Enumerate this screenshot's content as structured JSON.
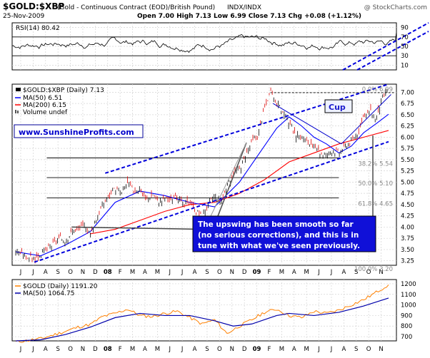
{
  "header": {
    "symbol": "$GOLD:$XBP",
    "description": "(Gold - Continuous Contract (EOD)/British Pound)",
    "exchange": "INDX/INDX",
    "date": "25-Nov-2009",
    "ohlc": "Open 7.00  High 7.13  Low 6.99  Close 7.13  Chg +0.08 (+1.12%)",
    "credit": "@ StockCharts.com",
    "credit_symbol": "▲"
  },
  "chart_data": [
    {
      "type": "line",
      "name": "rsi_panel",
      "legend": [
        "RSI(14) 80.42"
      ],
      "y_ticks": [
        "90",
        "70",
        "50",
        "30",
        "10"
      ],
      "ylim": [
        0,
        100
      ],
      "overbought": 70,
      "oversold": 30,
      "last_value": 80.42
    },
    {
      "type": "line",
      "name": "ratio_panel",
      "legend": [
        {
          "label": "$GOLD:$XBP (Daily) 7.13",
          "color": "#000000"
        },
        {
          "label": "MA(50) 6.51",
          "color": "#0000ff"
        },
        {
          "label": "MA(200) 6.15",
          "color": "#ff0000"
        },
        {
          "label": "Volume undef",
          "color": "#000000"
        }
      ],
      "x_labels": [
        "J",
        "J",
        "A",
        "S",
        "O",
        "N",
        "D",
        "08",
        "F",
        "M",
        "A",
        "M",
        "J",
        "J",
        "A",
        "S",
        "O",
        "N",
        "D",
        "09",
        "F",
        "M",
        "A",
        "M",
        "J",
        "J",
        "A",
        "S",
        "O",
        "N"
      ],
      "y_ticks": [
        "7.00",
        "6.75",
        "6.50",
        "6.25",
        "6.00",
        "5.75",
        "5.50",
        "5.25",
        "5.00",
        "4.75",
        "4.50",
        "4.25",
        "4.00",
        "3.75",
        "3.50",
        "3.25"
      ],
      "ylim": [
        3.15,
        7.18
      ],
      "price_path": [
        [
          0,
          3.45
        ],
        [
          0.5,
          3.4
        ],
        [
          1,
          3.33
        ],
        [
          1.5,
          3.28
        ],
        [
          2,
          3.38
        ],
        [
          2.5,
          3.5
        ],
        [
          3,
          3.62
        ],
        [
          3.5,
          3.75
        ],
        [
          4,
          3.7
        ],
        [
          4.5,
          3.9
        ],
        [
          5,
          3.95
        ],
        [
          5.5,
          4.05
        ],
        [
          6,
          3.85
        ],
        [
          6.5,
          4.2
        ],
        [
          7,
          4.5
        ],
        [
          7.5,
          4.7
        ],
        [
          8,
          4.85
        ],
        [
          8.5,
          4.75
        ],
        [
          9,
          5.0
        ],
        [
          9.5,
          4.8
        ],
        [
          10,
          4.85
        ],
        [
          10.5,
          4.6
        ],
        [
          11,
          4.75
        ],
        [
          11.5,
          4.55
        ],
        [
          12,
          4.65
        ],
        [
          12.5,
          4.6
        ],
        [
          13,
          4.7
        ],
        [
          13.5,
          4.45
        ],
        [
          14,
          4.6
        ],
        [
          14.5,
          4.35
        ],
        [
          15,
          4.25
        ],
        [
          15.5,
          4.5
        ],
        [
          16,
          4.7
        ],
        [
          16.5,
          4.55
        ],
        [
          17,
          4.9
        ],
        [
          17.5,
          5.2
        ],
        [
          18,
          5.3
        ],
        [
          18.5,
          5.6
        ],
        [
          19,
          5.9
        ],
        [
          19.5,
          6.05
        ],
        [
          20,
          6.65
        ],
        [
          20.5,
          7.0
        ],
        [
          21,
          6.75
        ],
        [
          21.5,
          6.55
        ],
        [
          22,
          6.3
        ],
        [
          22.5,
          6.05
        ],
        [
          23,
          6.0
        ],
        [
          23.5,
          5.9
        ],
        [
          24,
          5.75
        ],
        [
          24.5,
          5.65
        ],
        [
          25,
          5.6
        ],
        [
          25.5,
          5.72
        ],
        [
          26,
          5.65
        ],
        [
          26.5,
          5.8
        ],
        [
          27,
          5.9
        ],
        [
          27.5,
          6.1
        ],
        [
          28,
          6.45
        ],
        [
          28.5,
          6.6
        ],
        [
          29,
          6.4
        ],
        [
          29.5,
          6.85
        ],
        [
          30,
          7.13
        ]
      ],
      "ma50_path": [
        [
          0,
          3.45
        ],
        [
          2,
          3.36
        ],
        [
          4,
          3.6
        ],
        [
          6,
          3.9
        ],
        [
          8,
          4.55
        ],
        [
          10,
          4.8
        ],
        [
          12,
          4.7
        ],
        [
          14,
          4.55
        ],
        [
          16,
          4.45
        ],
        [
          18,
          5.0
        ],
        [
          19.5,
          5.6
        ],
        [
          21,
          6.2
        ],
        [
          22,
          6.45
        ],
        [
          23,
          6.25
        ],
        [
          24,
          6.0
        ],
        [
          25,
          5.85
        ],
        [
          26,
          5.65
        ],
        [
          27,
          5.8
        ],
        [
          28,
          6.1
        ],
        [
          29,
          6.3
        ],
        [
          30,
          6.51
        ]
      ],
      "ma200_path": [
        [
          6,
          3.85
        ],
        [
          8,
          3.95
        ],
        [
          10,
          4.15
        ],
        [
          12,
          4.35
        ],
        [
          14,
          4.5
        ],
        [
          16,
          4.55
        ],
        [
          18,
          4.75
        ],
        [
          20,
          5.05
        ],
        [
          22,
          5.45
        ],
        [
          24,
          5.65
        ],
        [
          26,
          5.85
        ],
        [
          28,
          6.0
        ],
        [
          30,
          6.15
        ]
      ],
      "fibonacci": [
        {
          "label": "0.0% 6.99",
          "value": 6.99,
          "dotted": true
        },
        {
          "label": "38.2% 5.54",
          "value": 5.54
        },
        {
          "label": "50.0% 5.10",
          "value": 5.1
        },
        {
          "label": "61.8% 4.65",
          "value": 4.65
        },
        {
          "label": "100.0% 3.20",
          "value": 3.2
        }
      ],
      "trend_channel": {
        "lower_start": [
          1.5,
          3.22
        ],
        "lower_end": [
          30,
          5.9
        ],
        "upper_start": [
          7.2,
          5.2
        ],
        "upper_end": [
          30,
          7.18
        ]
      },
      "cup_lines": {
        "left_start": [
          20.7,
          6.75
        ],
        "left_end": [
          26.2,
          5.85
        ],
        "right_start": [
          26.2,
          5.85
        ],
        "right_end": [
          30.2,
          6.95
        ]
      },
      "support_line": {
        "start": [
          4.5,
          4.0
        ],
        "end": [
          22,
          3.92
        ]
      },
      "line_levels": [
        {
          "value": 6.99,
          "x_from": 20.5,
          "x_to": 30.5
        },
        {
          "value": 5.54,
          "x_from": 2.5,
          "x_to": 26
        },
        {
          "value": 5.1,
          "x_from": 2.5,
          "x_to": 26
        },
        {
          "value": 4.65,
          "x_from": 2.5,
          "x_to": 26
        }
      ],
      "annotations": {
        "cup_label": "Cup",
        "site": "www.SunshineProfits.com",
        "comment": "The upswing has been smooth so far (no serious corrections), and this is in tune with what we've seen previously.",
        "comment_lines": [
          "The upswing has been smooth so far",
          "(no serious corrections), and this is in",
          "tune with what we've seen previously."
        ]
      }
    },
    {
      "type": "line",
      "name": "gold_panel",
      "legend": [
        {
          "label": "$GOLD (Daily) 1191.20",
          "color": "#ff8000"
        },
        {
          "label": "MA(50) 1064.75",
          "color": "#0000aa"
        }
      ],
      "x_labels": [
        "J",
        "J",
        "A",
        "S",
        "O",
        "N",
        "D",
        "08",
        "F",
        "M",
        "A",
        "M",
        "J",
        "J",
        "A",
        "S",
        "O",
        "N",
        "D",
        "09",
        "F",
        "M",
        "A",
        "M",
        "J",
        "J",
        "A",
        "S",
        "O",
        "N"
      ],
      "y_ticks": [
        "1200",
        "1100",
        "1000",
        "900",
        "800",
        "700"
      ],
      "ylim": [
        660,
        1240
      ],
      "gold_path": [
        [
          0,
          650
        ],
        [
          1,
          665
        ],
        [
          2,
          680
        ],
        [
          3,
          715
        ],
        [
          4,
          750
        ],
        [
          5,
          790
        ],
        [
          6,
          815
        ],
        [
          7,
          890
        ],
        [
          8,
          920
        ],
        [
          9,
          960
        ],
        [
          10,
          900
        ],
        [
          11,
          890
        ],
        [
          12,
          920
        ],
        [
          13,
          940
        ],
        [
          14,
          880
        ],
        [
          15,
          820
        ],
        [
          16,
          860
        ],
        [
          17,
          730
        ],
        [
          18,
          800
        ],
        [
          19,
          860
        ],
        [
          20,
          930
        ],
        [
          21,
          960
        ],
        [
          22,
          900
        ],
        [
          23,
          880
        ],
        [
          24,
          940
        ],
        [
          25,
          920
        ],
        [
          26,
          950
        ],
        [
          27,
          1000
        ],
        [
          28,
          1050
        ],
        [
          29,
          1120
        ],
        [
          30,
          1191
        ]
      ],
      "ma_path": [
        [
          0,
          660
        ],
        [
          2,
          670
        ],
        [
          4,
          720
        ],
        [
          6,
          790
        ],
        [
          8,
          880
        ],
        [
          10,
          920
        ],
        [
          12,
          900
        ],
        [
          14,
          900
        ],
        [
          16,
          850
        ],
        [
          17.5,
          800
        ],
        [
          19,
          820
        ],
        [
          21,
          900
        ],
        [
          22,
          920
        ],
        [
          24,
          900
        ],
        [
          26,
          930
        ],
        [
          28,
          990
        ],
        [
          30,
          1065
        ]
      ]
    }
  ]
}
